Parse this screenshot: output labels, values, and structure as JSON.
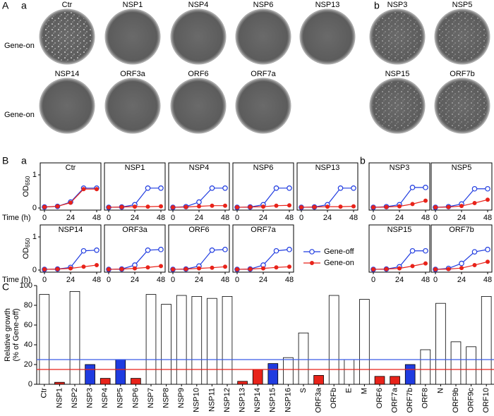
{
  "panels": [
    "A",
    "a",
    "b",
    "B",
    "a",
    "b",
    "C"
  ],
  "plate_row_labels": [
    "Gene-on",
    "Gene-on"
  ],
  "plates": [
    "Ctr",
    "NSP1",
    "NSP4",
    "NSP6",
    "NSP13",
    "NSP3",
    "NSP5",
    "NSP14",
    "ORF3a",
    "ORF6",
    "ORF7a",
    "NSP15",
    "ORF7b"
  ],
  "chart_data": [
    {
      "type": "line",
      "title": "Ctr",
      "x": [
        0,
        12,
        24,
        36,
        48
      ],
      "xlim": [
        0,
        48
      ],
      "xticks": [
        0,
        24,
        48
      ],
      "ylim": [
        0,
        1
      ],
      "yticks": [
        0,
        1
      ],
      "ylabel": "OD",
      "ylabel_sub": "650",
      "xlabel": "Time (h)",
      "series": [
        {
          "color": "#1f3be0",
          "marker": "open",
          "values": [
            0.03,
            0.05,
            0.18,
            0.6,
            0.6
          ]
        },
        {
          "color": "#e8231a",
          "marker": "filled",
          "values": [
            0.03,
            0.05,
            0.16,
            0.57,
            0.57
          ]
        }
      ]
    },
    {
      "type": "line",
      "title": "NSP1",
      "x": [
        0,
        12,
        24,
        36,
        48
      ],
      "xlim": [
        0,
        48
      ],
      "xticks": [
        0,
        24,
        48
      ],
      "ylim": [
        0,
        1
      ],
      "series": [
        {
          "color": "#1f3be0",
          "marker": "open",
          "values": [
            0.02,
            0.03,
            0.1,
            0.6,
            0.6
          ]
        },
        {
          "color": "#e8231a",
          "marker": "filled",
          "values": [
            0.02,
            0.03,
            0.04,
            0.04,
            0.05
          ]
        }
      ]
    },
    {
      "type": "line",
      "title": "NSP4",
      "x": [
        0,
        12,
        24,
        36,
        48
      ],
      "xlim": [
        0,
        48
      ],
      "xticks": [
        0,
        24,
        48
      ],
      "ylim": [
        0,
        1
      ],
      "series": [
        {
          "color": "#1f3be0",
          "marker": "open",
          "values": [
            0.02,
            0.04,
            0.18,
            0.6,
            0.6
          ]
        },
        {
          "color": "#e8231a",
          "marker": "filled",
          "values": [
            0.02,
            0.03,
            0.05,
            0.07,
            0.07
          ]
        }
      ]
    },
    {
      "type": "line",
      "title": "NSP6",
      "x": [
        0,
        12,
        24,
        36,
        48
      ],
      "xlim": [
        0,
        48
      ],
      "xticks": [
        0,
        24,
        48
      ],
      "ylim": [
        0,
        1
      ],
      "series": [
        {
          "color": "#1f3be0",
          "marker": "open",
          "values": [
            0.02,
            0.03,
            0.1,
            0.6,
            0.6
          ]
        },
        {
          "color": "#e8231a",
          "marker": "filled",
          "values": [
            0.02,
            0.03,
            0.04,
            0.07,
            0.08
          ]
        }
      ]
    },
    {
      "type": "line",
      "title": "NSP13",
      "x": [
        0,
        12,
        24,
        36,
        48
      ],
      "xlim": [
        0,
        48
      ],
      "xticks": [
        0,
        24,
        48
      ],
      "ylim": [
        0,
        1
      ],
      "series": [
        {
          "color": "#1f3be0",
          "marker": "open",
          "values": [
            0.02,
            0.03,
            0.1,
            0.6,
            0.6
          ]
        },
        {
          "color": "#e8231a",
          "marker": "filled",
          "values": [
            0.02,
            0.03,
            0.04,
            0.04,
            0.05
          ]
        }
      ]
    },
    {
      "type": "line",
      "title": "NSP3",
      "x": [
        0,
        12,
        24,
        36,
        48
      ],
      "xlim": [
        0,
        48
      ],
      "xticks": [
        0,
        24,
        48
      ],
      "ylim": [
        0,
        1
      ],
      "series": [
        {
          "color": "#1f3be0",
          "marker": "open",
          "values": [
            0.02,
            0.04,
            0.1,
            0.62,
            0.62
          ]
        },
        {
          "color": "#e8231a",
          "marker": "filled",
          "values": [
            0.02,
            0.03,
            0.05,
            0.12,
            0.22
          ]
        }
      ]
    },
    {
      "type": "line",
      "title": "NSP5",
      "x": [
        0,
        12,
        24,
        36,
        48
      ],
      "xlim": [
        0,
        48
      ],
      "xticks": [
        0,
        24,
        48
      ],
      "ylim": [
        0,
        1
      ],
      "series": [
        {
          "color": "#1f3be0",
          "marker": "open",
          "values": [
            0.02,
            0.04,
            0.12,
            0.58,
            0.58
          ]
        },
        {
          "color": "#e8231a",
          "marker": "filled",
          "values": [
            0.02,
            0.03,
            0.06,
            0.15,
            0.25
          ]
        }
      ]
    },
    {
      "type": "line",
      "title": "NSP14",
      "x": [
        0,
        12,
        24,
        36,
        48
      ],
      "xlim": [
        0,
        48
      ],
      "xticks": [
        0,
        24,
        48
      ],
      "ylim": [
        0,
        1
      ],
      "yticks": [
        0,
        1
      ],
      "ylabel": "OD",
      "ylabel_sub": "650",
      "xlabel": "Time (h)",
      "series": [
        {
          "color": "#1f3be0",
          "marker": "open",
          "values": [
            0.02,
            0.03,
            0.08,
            0.58,
            0.6
          ]
        },
        {
          "color": "#e8231a",
          "marker": "filled",
          "values": [
            0.02,
            0.03,
            0.05,
            0.1,
            0.15
          ]
        }
      ]
    },
    {
      "type": "line",
      "title": "ORF3a",
      "x": [
        0,
        12,
        24,
        36,
        48
      ],
      "xlim": [
        0,
        48
      ],
      "xticks": [
        0,
        24,
        48
      ],
      "ylim": [
        0,
        1
      ],
      "series": [
        {
          "color": "#1f3be0",
          "marker": "open",
          "values": [
            0.02,
            0.03,
            0.15,
            0.6,
            0.62
          ]
        },
        {
          "color": "#e8231a",
          "marker": "filled",
          "values": [
            0.02,
            0.03,
            0.05,
            0.08,
            0.12
          ]
        }
      ]
    },
    {
      "type": "line",
      "title": "ORF6",
      "x": [
        0,
        12,
        24,
        36,
        48
      ],
      "xlim": [
        0,
        48
      ],
      "xticks": [
        0,
        24,
        48
      ],
      "ylim": [
        0,
        1
      ],
      "series": [
        {
          "color": "#1f3be0",
          "marker": "open",
          "values": [
            0.02,
            0.03,
            0.12,
            0.6,
            0.62
          ]
        },
        {
          "color": "#e8231a",
          "marker": "filled",
          "values": [
            0.02,
            0.03,
            0.05,
            0.07,
            0.1
          ]
        }
      ]
    },
    {
      "type": "line",
      "title": "ORF7a",
      "x": [
        0,
        12,
        24,
        36,
        48
      ],
      "xlim": [
        0,
        48
      ],
      "xticks": [
        0,
        24,
        48
      ],
      "ylim": [
        0,
        1
      ],
      "series": [
        {
          "name": "Gene-off",
          "color": "#1f3be0",
          "marker": "open",
          "values": [
            0.02,
            0.03,
            0.15,
            0.58,
            0.62
          ]
        },
        {
          "name": "Gene-on",
          "color": "#e8231a",
          "marker": "filled",
          "values": [
            0.02,
            0.03,
            0.05,
            0.08,
            0.1
          ]
        }
      ]
    },
    {
      "type": "line",
      "title": "NSP15",
      "x": [
        0,
        12,
        24,
        36,
        48
      ],
      "xlim": [
        0,
        48
      ],
      "xticks": [
        0,
        24,
        48
      ],
      "ylim": [
        0,
        1
      ],
      "series": [
        {
          "color": "#1f3be0",
          "marker": "open",
          "values": [
            0.02,
            0.03,
            0.1,
            0.58,
            0.58
          ]
        },
        {
          "color": "#e8231a",
          "marker": "filled",
          "values": [
            0.02,
            0.03,
            0.05,
            0.12,
            0.2
          ]
        }
      ]
    },
    {
      "type": "line",
      "title": "ORF7b",
      "x": [
        0,
        12,
        24,
        36,
        48
      ],
      "xlim": [
        0,
        48
      ],
      "xticks": [
        0,
        24,
        48
      ],
      "ylim": [
        0,
        1
      ],
      "series": [
        {
          "color": "#1f3be0",
          "marker": "open",
          "values": [
            0.02,
            0.05,
            0.2,
            0.55,
            0.62
          ]
        },
        {
          "color": "#e8231a",
          "marker": "filled",
          "values": [
            0.02,
            0.03,
            0.06,
            0.15,
            0.25
          ]
        }
      ]
    },
    {
      "type": "bar",
      "ylabel": [
        "Relative growth",
        "(% of Gene-off)"
      ],
      "categories": [
        "Ctr",
        "NSP1",
        "NSP2",
        "NSP3",
        "NSP4",
        "NSP5",
        "NSP6",
        "NSP7",
        "NSP8",
        "NSP9",
        "NSP10",
        "NSP11",
        "NSP12",
        "NSP13",
        "NSP14",
        "NSP15",
        "NSP16",
        "S",
        "ORF3a",
        "ORFb",
        "E",
        "M",
        "ORF6",
        "ORF7a",
        "ORF7b",
        "ORF8",
        "N",
        "ORF9b",
        "ORF9c",
        "ORF10"
      ],
      "values": [
        91,
        2,
        94,
        20,
        6,
        25,
        6,
        91,
        81,
        90,
        89,
        87,
        89,
        3,
        15,
        21,
        27,
        52,
        9,
        90,
        25,
        86,
        8,
        8,
        20,
        35,
        82,
        43,
        38,
        89
      ],
      "colors": [
        "#ffffff",
        "#e8231a",
        "#ffffff",
        "#1f3be0",
        "#e8231a",
        "#1f3be0",
        "#e8231a",
        "#ffffff",
        "#ffffff",
        "#ffffff",
        "#ffffff",
        "#ffffff",
        "#ffffff",
        "#e8231a",
        "#e8231a",
        "#1f3be0",
        "#ffffff",
        "#ffffff",
        "#e8231a",
        "#ffffff",
        "#ffffff",
        "#ffffff",
        "#e8231a",
        "#e8231a",
        "#1f3be0",
        "#ffffff",
        "#ffffff",
        "#ffffff",
        "#ffffff",
        "#ffffff"
      ],
      "hlines": [
        {
          "value": 25,
          "color": "#3a5ce8"
        },
        {
          "value": 15,
          "color": "#e8231a"
        }
      ],
      "ylim": [
        0,
        100
      ],
      "yticks": [
        0,
        20,
        40,
        60,
        80,
        100
      ]
    }
  ]
}
